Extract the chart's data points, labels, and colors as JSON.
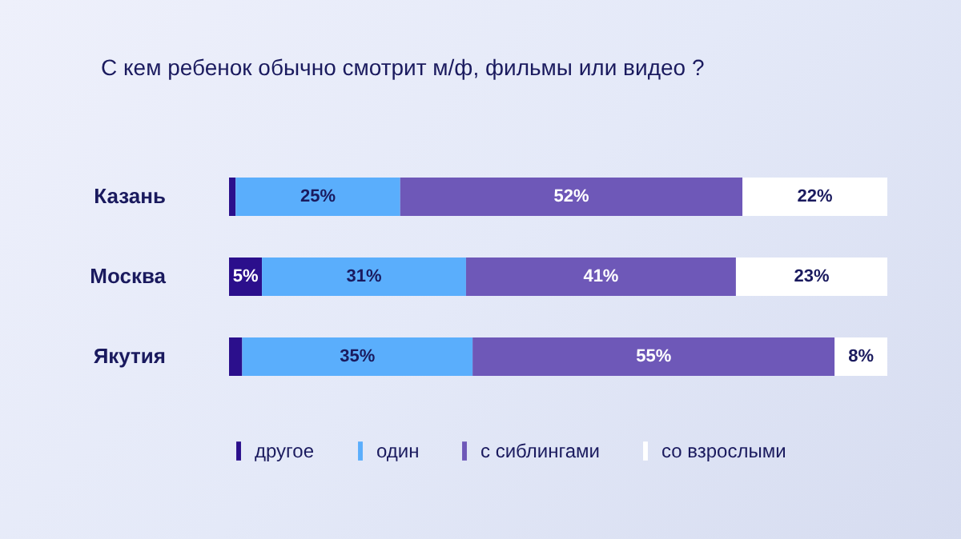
{
  "chart_data": {
    "type": "bar",
    "orientation": "horizontal",
    "stacked": true,
    "title": "С кем ребенок обычно смотрит м/ф, фильмы или видео ?",
    "categories": [
      "Казань",
      "Москва",
      "Якутия"
    ],
    "series": [
      {
        "name": "другое",
        "color": "#2b0f8c",
        "values": [
          1,
          5,
          2
        ],
        "value_labels": [
          null,
          "5%",
          null
        ]
      },
      {
        "name": "один",
        "color": "#5aaefc",
        "values": [
          25,
          31,
          35
        ],
        "value_labels": [
          "25%",
          "31%",
          "35%"
        ]
      },
      {
        "name": "с сиблингами",
        "color": "#6e58b8",
        "values": [
          52,
          41,
          55
        ],
        "value_labels": [
          "52%",
          "41%",
          "55%"
        ]
      },
      {
        "name": "со взрослыми",
        "color": "#ffffff",
        "values": [
          22,
          23,
          8
        ],
        "value_labels": [
          "22%",
          "23%",
          "8%"
        ]
      }
    ],
    "legend": "bottom"
  }
}
